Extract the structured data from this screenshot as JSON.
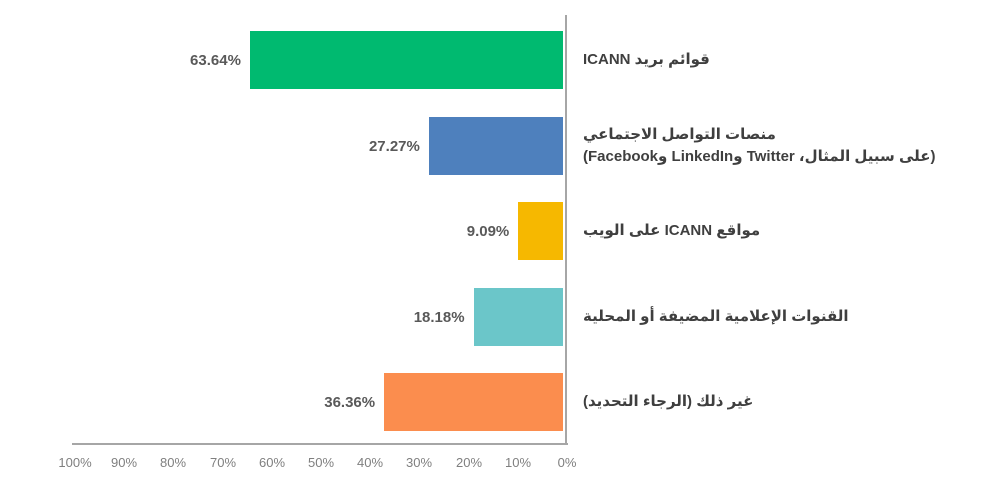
{
  "chart_data": {
    "type": "bar",
    "orientation": "horizontal",
    "value_axis_direction": "right-to-left (0% at right axis, 100% at left)",
    "title": "",
    "xlabel": "",
    "ylabel": "",
    "xlim": [
      0,
      100
    ],
    "grid": false,
    "legend": "none",
    "values": [
      63.64,
      27.27,
      9.09,
      18.18,
      36.36
    ],
    "value_labels": [
      "63.64%",
      "27.27%",
      "9.09%",
      "18.18%",
      "36.36%"
    ],
    "categories": [
      {
        "lines": [
          "قوائم بريد ICANN"
        ]
      },
      {
        "lines": [
          "منصات التواصل الاجتماعي",
          "(على سبيل المثال، Twitter وLinkedIn وFacebook)"
        ]
      },
      {
        "lines": [
          "مواقع ICANN على الويب"
        ]
      },
      {
        "lines": [
          "القنوات الإعلامية المضيفة أو المحلية"
        ]
      },
      {
        "lines": [
          "غير ذلك (الرجاء التحديد)"
        ]
      }
    ],
    "bar_colors": [
      "#00ba70",
      "#4e80bd",
      "#f6b800",
      "#6bc6c9",
      "#fb8d4e"
    ],
    "x_ticks": [
      "100%",
      "90%",
      "80%",
      "70%",
      "60%",
      "50%",
      "40%",
      "30%",
      "20%",
      "10%",
      "0%"
    ],
    "axis_color": "#a6a6a6",
    "tick_label_color": "#7f7f7f",
    "value_label_color": "#595959",
    "category_label_color": "#3f3f3f"
  }
}
